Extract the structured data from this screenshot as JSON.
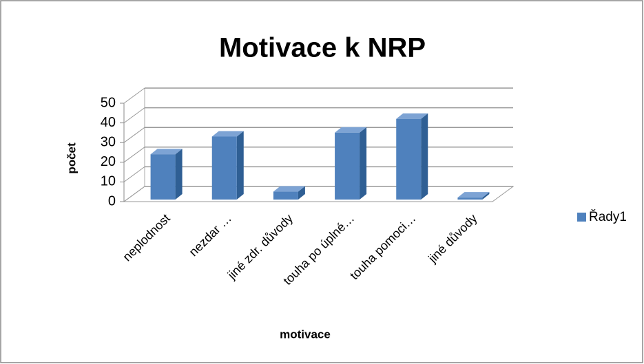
{
  "chart_data": {
    "type": "bar3d",
    "title": "Motivace k NRP",
    "x_label": "motivace",
    "y_label": "počet",
    "categories": [
      "neplodnost",
      "nezdar …",
      "jiné zdr. důvody",
      "touha po úplné…",
      "touha pomoci…",
      "jiné důvody"
    ],
    "series": [
      {
        "name": "Řady1",
        "color": "#4f81bd",
        "values": [
          23,
          32,
          4,
          34,
          41,
          1
        ]
      }
    ],
    "ylim": [
      0,
      50
    ],
    "yticks": [
      0,
      10,
      20,
      30,
      40,
      50
    ],
    "grid": true,
    "legend": "right"
  }
}
